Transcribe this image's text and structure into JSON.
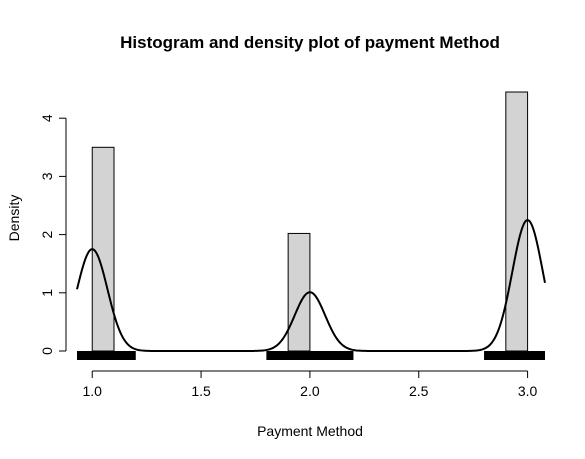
{
  "chart_data": {
    "type": "bar",
    "title": "Histogram and density plot of payment Method",
    "xlabel": "Payment Method",
    "ylabel": "Density",
    "xlim": [
      0.93,
      3.08
    ],
    "ylim": [
      0,
      4.6
    ],
    "x_ticks": [
      1.0,
      1.5,
      2.0,
      2.5,
      3.0
    ],
    "x_tick_labels": [
      "1.0",
      "1.5",
      "2.0",
      "2.5",
      "3.0"
    ],
    "y_ticks": [
      0,
      1,
      2,
      3,
      4
    ],
    "y_tick_labels": [
      "0",
      "1",
      "2",
      "3",
      "4"
    ],
    "histogram": {
      "bins": [
        {
          "x0": 1.0,
          "x1": 1.1,
          "density": 3.5
        },
        {
          "x0": 1.9,
          "x1": 2.0,
          "density": 2.02
        },
        {
          "x0": 2.9,
          "x1": 3.0,
          "density": 4.45
        }
      ],
      "fill": "#d3d3d3"
    },
    "density_curve": {
      "peaks": [
        {
          "center": 1.0,
          "height": 1.75
        },
        {
          "center": 2.0,
          "height": 1.01
        },
        {
          "center": 3.0,
          "height": 2.25
        }
      ],
      "x_range": [
        0.93,
        3.08
      ]
    },
    "rug_segments": [
      [
        0.93,
        1.2
      ],
      [
        1.8,
        2.2
      ],
      [
        2.8,
        3.08
      ]
    ],
    "grid": false,
    "legend": "none"
  }
}
